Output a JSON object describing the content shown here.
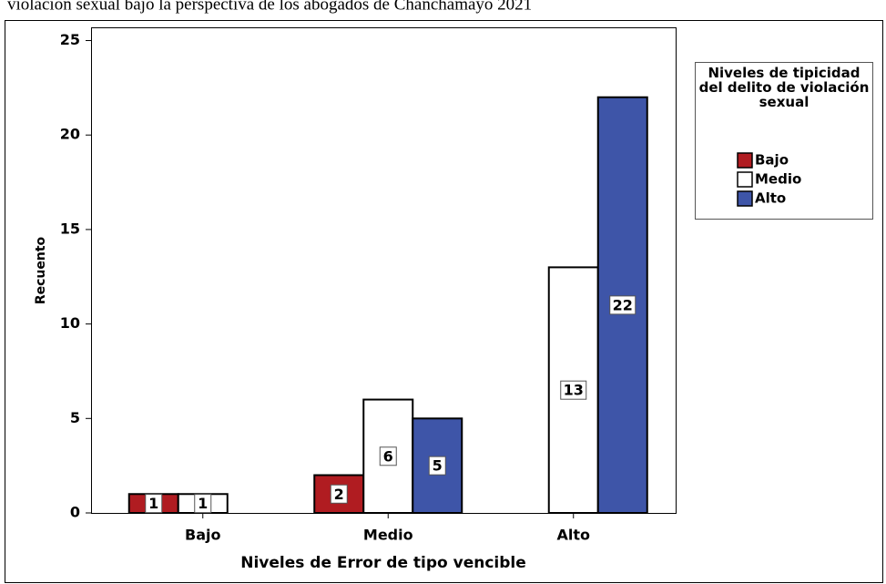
{
  "chart_data": {
    "type": "bar",
    "title": "violación sexual bajo la perspectiva de los abogados de Chanchamayo 2021",
    "categories": [
      "Bajo",
      "Medio",
      "Alto"
    ],
    "series": [
      {
        "name": "Bajo",
        "color": "#b01c21",
        "values": [
          1,
          2,
          null
        ]
      },
      {
        "name": "Medio",
        "color": "#ffffff",
        "values": [
          1,
          6,
          13
        ]
      },
      {
        "name": "Alto",
        "color": "#3e55a8",
        "values": [
          null,
          5,
          22
        ]
      }
    ],
    "x_label": "Niveles de Error de tipo vencible",
    "y_label": "Recuento",
    "legend_title": "Niveles de tipicidad del delito de violación sexual",
    "legend": "right",
    "ylim": [
      0,
      25.7
    ],
    "yticks": [
      0,
      5,
      10,
      15,
      20,
      25
    ]
  }
}
